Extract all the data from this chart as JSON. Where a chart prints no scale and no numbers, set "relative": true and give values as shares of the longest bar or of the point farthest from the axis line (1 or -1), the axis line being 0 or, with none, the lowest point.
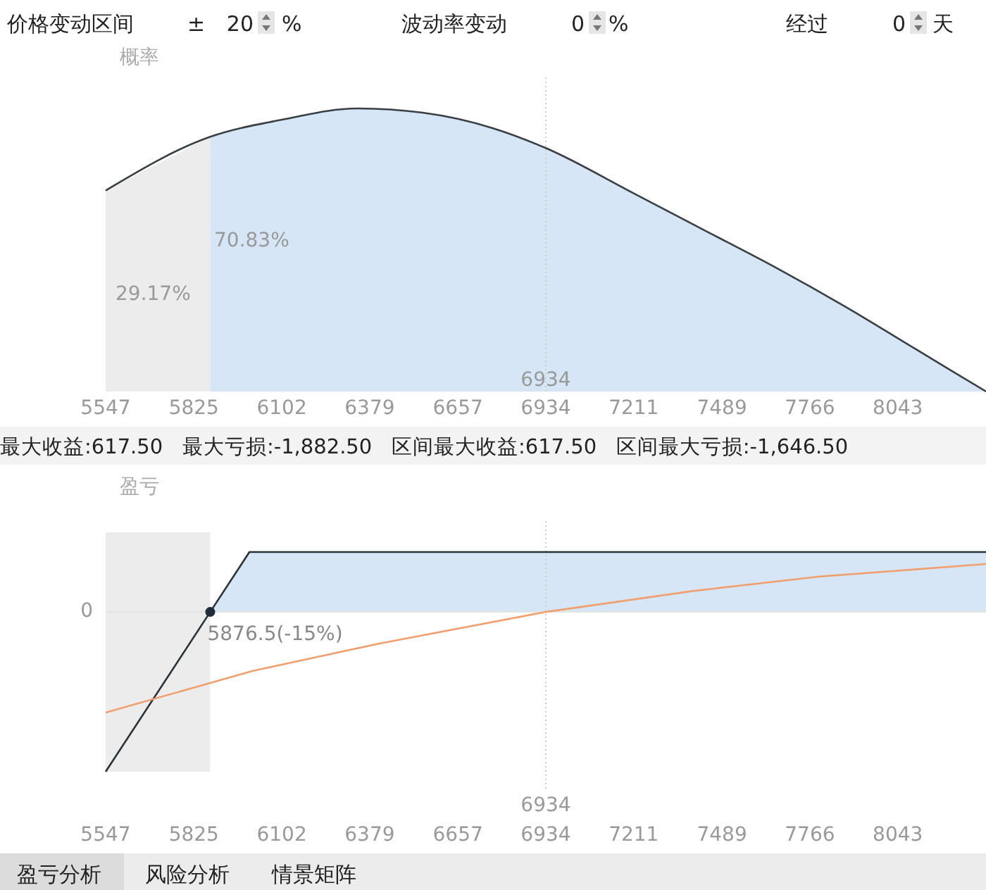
{
  "chart_data": [
    {
      "type": "line",
      "ylabel": "概率",
      "relative": true,
      "xlim": [
        5547,
        8321
      ],
      "xticks": [
        5547,
        5825,
        6102,
        6379,
        6657,
        6934,
        7211,
        7489,
        7766,
        8043
      ],
      "series": [
        {
          "color": "#3a3f44",
          "x": [
            5547,
            5876.5,
            6102,
            6341,
            6546,
            6768,
            6934,
            7211,
            7433,
            7655,
            7877,
            8099,
            8321
          ],
          "values": [
            0.71,
            0.9,
            0.96,
            1,
            0.985,
            0.93,
            0.86,
            0.7,
            0.57,
            0.44,
            0.3,
            0.15,
            0
          ]
        },
        {
          "type": "area",
          "color": "#ececec",
          "x": [
            5547,
            5876.5
          ],
          "values": [
            0.71,
            0.9
          ]
        },
        {
          "type": "area",
          "color": "#d6e6f7",
          "x": [
            5876.5,
            6102,
            6341,
            6546,
            6768,
            6934,
            7211,
            7433,
            7655,
            7877,
            8099,
            8321
          ],
          "values": [
            0.9,
            0.96,
            1,
            0.985,
            0.93,
            0.86,
            0.7,
            0.57,
            0.44,
            0.3,
            0.15,
            0
          ]
        }
      ],
      "ref_lines": [
        {
          "axis": "x",
          "value": 6934,
          "label": "6934",
          "color": "#cccccc",
          "line_style": "dotted"
        }
      ],
      "annotations": [
        "价格变动区间",
        "±",
        "20",
        "%",
        "波动率变动",
        "0",
        "%",
        "经过",
        "0",
        "天",
        "29.17%",
        "70.83%"
      ]
    },
    {
      "type": "line",
      "ylabel": "盈亏",
      "subtitle": "最大收益:617.50   最大亏损:-1,882.50   区间最大收益:617.50   区间最大亏损:-1,646.50",
      "relative": true,
      "xlim": [
        5547,
        8321
      ],
      "xticks": [
        5547,
        5825,
        6102,
        6379,
        6657,
        6934,
        7211,
        7489,
        7766,
        8043
      ],
      "series": [
        {
          "type": "area",
          "color": "#d6e6f7",
          "x": [
            5876.5,
            6000,
            8321
          ],
          "values": [
            0,
            0.375,
            0.375
          ]
        },
        {
          "color": "#2c3338",
          "x": [
            5547,
            5876.5,
            6000,
            8321
          ],
          "values": [
            -1,
            0,
            0.375,
            0.375
          ]
        },
        {
          "color": "#f0a070",
          "x": [
            5547,
            6009,
            6404,
            6934,
            7393,
            7788,
            8321
          ],
          "values": [
            -0.63,
            -0.37,
            -0.2,
            0,
            0.13,
            0.22,
            0.3
          ]
        }
      ],
      "bands": [
        {
          "axis": "x",
          "from": 5547,
          "to": 5876.5,
          "color": "#ececec"
        }
      ],
      "ref_lines": [
        {
          "axis": "x",
          "value": 6934,
          "label": "6934",
          "color": "#cccccc",
          "line_style": "dotted"
        }
      ],
      "annotations": [
        "0",
        {
          "text": "5876.5(-15%)",
          "x": 5876.5,
          "y": 0
        },
        "盈亏分析",
        "风险分析",
        "情景矩阵"
      ]
    }
  ]
}
